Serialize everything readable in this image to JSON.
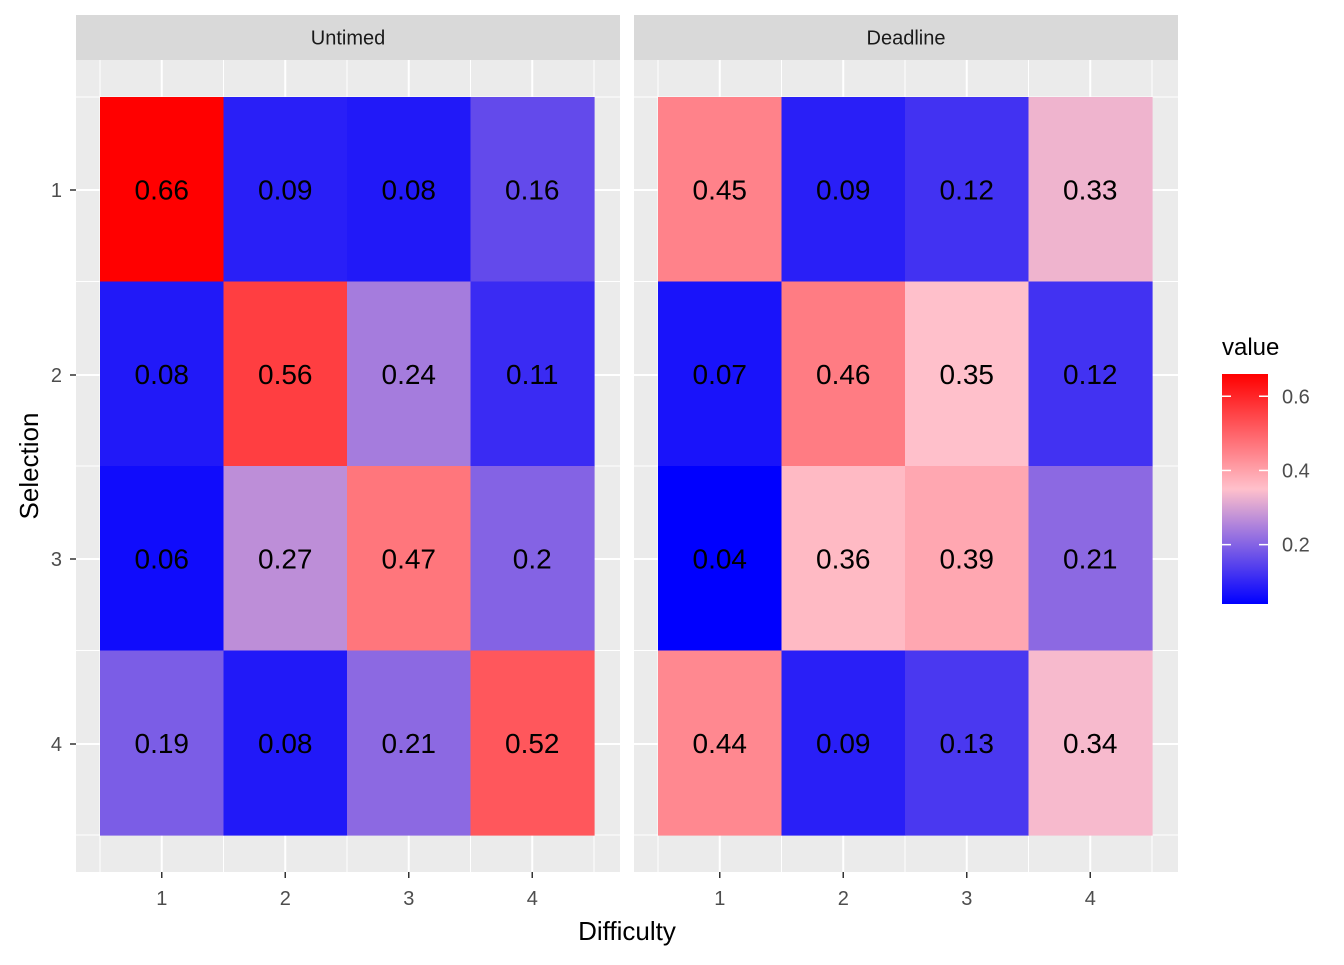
{
  "chart_data": {
    "type": "heatmap",
    "xlabel": "Difficulty",
    "ylabel": "Selection",
    "x_categories": [
      "1",
      "2",
      "3",
      "4"
    ],
    "y_categories": [
      "1",
      "2",
      "3",
      "4"
    ],
    "panels": [
      {
        "title": "Untimed",
        "values": [
          [
            0.66,
            0.09,
            0.08,
            0.16
          ],
          [
            0.08,
            0.56,
            0.24,
            0.11
          ],
          [
            0.06,
            0.27,
            0.47,
            0.2
          ],
          [
            0.19,
            0.08,
            0.21,
            0.52
          ]
        ],
        "labels": [
          [
            "0.66",
            "0.09",
            "0.08",
            "0.16"
          ],
          [
            "0.08",
            "0.56",
            "0.24",
            "0.11"
          ],
          [
            "0.06",
            "0.27",
            "0.47",
            "0.2"
          ],
          [
            "0.19",
            "0.08",
            "0.21",
            "0.52"
          ]
        ]
      },
      {
        "title": "Deadline",
        "values": [
          [
            0.45,
            0.09,
            0.12,
            0.33
          ],
          [
            0.07,
            0.46,
            0.35,
            0.12
          ],
          [
            0.04,
            0.36,
            0.39,
            0.21
          ],
          [
            0.44,
            0.09,
            0.13,
            0.34
          ]
        ],
        "labels": [
          [
            "0.45",
            "0.09",
            "0.12",
            "0.33"
          ],
          [
            "0.07",
            "0.46",
            "0.35",
            "0.12"
          ],
          [
            "0.04",
            "0.36",
            "0.39",
            "0.21"
          ],
          [
            "0.44",
            "0.09",
            "0.13",
            "0.34"
          ]
        ]
      }
    ],
    "legend": {
      "title": "value",
      "position": "right",
      "ticks": [
        0.2,
        0.4,
        0.6
      ],
      "tick_labels": [
        "0.2",
        "0.4",
        "0.6"
      ],
      "range": [
        0.04,
        0.66
      ],
      "low_color": "#0000ff",
      "mid_color": "#ffc0cb",
      "mid_value": 0.35,
      "high_color": "#ff0000"
    },
    "grid": true,
    "panel_background": "#ebebeb",
    "strip_background": "#d9d9d9"
  }
}
